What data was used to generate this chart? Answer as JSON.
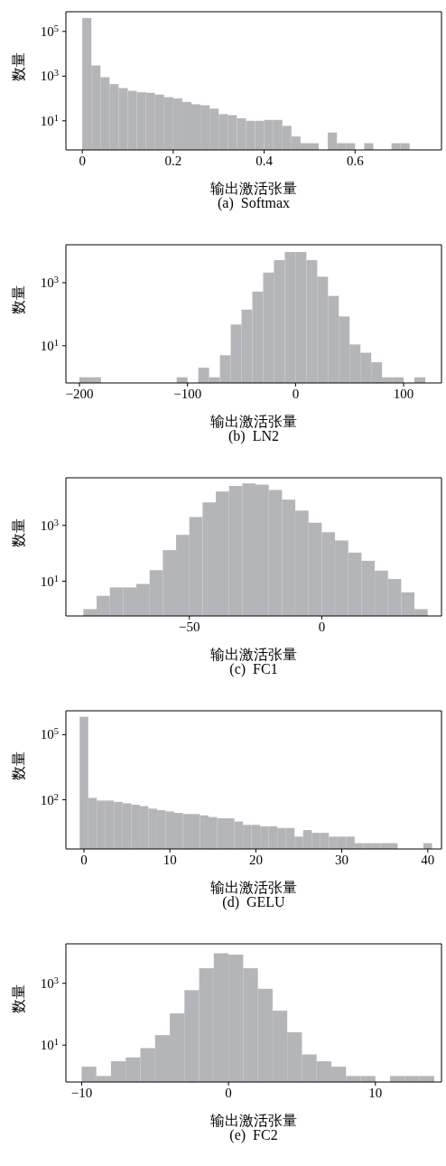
{
  "chart_data": [
    {
      "type": "histogram",
      "title": "(a)  Softmax",
      "xlabel": "输出激活张量",
      "ylabel": "数量",
      "color": "#b4b5b8",
      "log": "y",
      "grid": false,
      "bins": [
        0,
        0.02,
        0.04,
        0.06,
        0.08,
        0.1,
        0.12,
        0.14,
        0.16,
        0.18,
        0.2,
        0.22,
        0.24,
        0.26,
        0.28,
        0.3,
        0.32,
        0.34,
        0.36,
        0.38,
        0.4,
        0.42,
        0.44,
        0.46,
        0.48,
        0.5,
        0.52,
        0.54,
        0.56,
        0.58,
        0.6,
        0.62,
        0.64,
        0.66,
        0.68,
        0.7,
        0.72
      ],
      "values": [
        400000,
        3000,
        900,
        440,
        290,
        220,
        190,
        180,
        150,
        115,
        100,
        70,
        55,
        50,
        35,
        20,
        18,
        13,
        10,
        10,
        11,
        11,
        6,
        2,
        1,
        1,
        null,
        3,
        1,
        1,
        null,
        1,
        null,
        null,
        1,
        1
      ],
      "xlim": [
        -0.036,
        0.79
      ],
      "xticks": [
        0,
        0.2,
        0.4,
        0.6
      ],
      "ylim": [
        0.5,
        760000
      ],
      "yticks": [
        {
          "value": 10,
          "label": "10$^{1}$"
        },
        {
          "value": 1000,
          "label": "10$^{3}$"
        },
        {
          "value": 100000,
          "label": "10$^{5}$"
        }
      ]
    },
    {
      "type": "histogram",
      "title": "(b)  LN2",
      "xlabel": "输出激活张量",
      "ylabel": "数量",
      "color": "#b4b5b8",
      "log": "y",
      "grid": false,
      "bins": [
        -200,
        -190,
        -180,
        -170,
        -160,
        -150,
        -140,
        -130,
        -120,
        -110,
        -100,
        -90,
        -80,
        -70,
        -60,
        -50,
        -40,
        -30,
        -20,
        -10,
        0,
        10,
        20,
        30,
        40,
        50,
        60,
        70,
        80,
        90,
        100,
        110,
        120
      ],
      "values": [
        1,
        1,
        null,
        null,
        null,
        null,
        null,
        null,
        null,
        1,
        null,
        2,
        1,
        5,
        47,
        140,
        520,
        2100,
        5200,
        9400,
        9400,
        5200,
        1550,
        380,
        85,
        11,
        6,
        3,
        1,
        1,
        null,
        1
      ],
      "xlim": [
        -212.5,
        135
      ],
      "xticks": [
        {
          "value": -200,
          "label": "−200"
        },
        {
          "value": -100,
          "label": "−100"
        },
        0,
        100
      ],
      "ylim": [
        0.66,
        16000
      ],
      "yticks": [
        {
          "value": 10,
          "label": "10$^{1}$"
        },
        {
          "value": 1000,
          "label": "10$^{3}$"
        }
      ]
    },
    {
      "type": "histogram",
      "title": "(c)  FC1",
      "xlabel": "输出激活张量",
      "ylabel": "数量",
      "color": "#b4b5b8",
      "log": "y",
      "grid": false,
      "bins": [
        -90,
        -85,
        -80,
        -75,
        -70,
        -65,
        -60,
        -55,
        -50,
        -45,
        -40,
        -35,
        -30,
        -25,
        -20,
        -15,
        -10,
        -5,
        0,
        5,
        10,
        15,
        20,
        25,
        30,
        35,
        40
      ],
      "values": [
        1,
        3,
        6,
        6,
        8,
        25,
        130,
        460,
        2000,
        6700,
        16500,
        26000,
        32000,
        29000,
        18600,
        8400,
        3400,
        1250,
        570,
        290,
        106,
        54,
        24,
        12,
        4,
        1
      ],
      "xlim": [
        -96.6,
        45.2
      ],
      "xticks": [
        {
          "value": -50,
          "label": "−50"
        },
        0
      ],
      "ylim": [
        0.57,
        51000
      ],
      "yticks": [
        {
          "value": 10,
          "label": "10$^{1}$"
        },
        {
          "value": 1000,
          "label": "10$^{3}$"
        }
      ]
    },
    {
      "type": "histogram",
      "title": "(d)  GELU",
      "xlabel": "输出激活张量",
      "ylabel": "数量",
      "color": "#b4b5b8",
      "log": "y",
      "grid": false,
      "bins": [
        -0.5,
        0.5,
        1.5,
        2.5,
        3.5,
        4.5,
        5.5,
        6.5,
        7.5,
        8.5,
        9.5,
        10.5,
        11.5,
        12.5,
        13.5,
        14.5,
        15.5,
        16.5,
        17.5,
        18.5,
        19.5,
        20.5,
        21.5,
        22.5,
        23.5,
        24.5,
        25.5,
        26.5,
        27.5,
        28.5,
        29.5,
        30.5,
        31.5,
        32.5,
        33.5,
        34.5,
        35.5,
        36.5,
        37.5,
        38.5,
        39.5,
        40.5
      ],
      "values": [
        670000,
        122,
        92,
        92,
        80,
        69,
        59,
        51,
        39,
        33,
        29,
        25,
        22,
        22,
        19,
        16,
        14,
        14,
        10,
        7,
        7,
        6,
        6,
        5,
        5,
        2,
        4,
        3,
        3,
        2,
        2,
        2,
        1,
        1,
        1,
        1,
        1,
        null,
        null,
        null,
        1
      ],
      "xlim": [
        -2.1,
        41.6
      ],
      "xticks": [
        0,
        10,
        20,
        30,
        40
      ],
      "ylim": [
        0.54,
        1260000
      ],
      "yticks": [
        {
          "value": 100,
          "label": "10$^{2}$"
        },
        {
          "value": 100000,
          "label": "10$^{5}$"
        }
      ]
    },
    {
      "type": "histogram",
      "title": "(e)  FC2",
      "xlabel": "输出激活张量",
      "ylabel": "数量",
      "color": "#b4b5b8",
      "log": "y",
      "grid": false,
      "bins": [
        -10,
        -9,
        -8,
        -7,
        -6,
        -5,
        -4,
        -3,
        -2,
        -1,
        0,
        1,
        2,
        3,
        4,
        5,
        6,
        7,
        8,
        9,
        10,
        11,
        12,
        13,
        14
      ],
      "values": [
        2,
        1,
        3,
        4,
        8,
        21,
        106,
        600,
        3070,
        9400,
        8500,
        3070,
        665,
        130,
        26,
        5,
        3,
        2,
        1,
        1,
        null,
        1,
        1,
        1
      ],
      "xlim": [
        -11.07,
        14.5
      ],
      "xticks": [
        {
          "value": -10,
          "label": "−10"
        },
        0,
        10
      ],
      "ylim": [
        0.64,
        19000
      ],
      "yticks": [
        {
          "value": 10,
          "label": "10$^{1}$"
        },
        {
          "value": 1000,
          "label": "10$^{3}$"
        }
      ]
    }
  ]
}
